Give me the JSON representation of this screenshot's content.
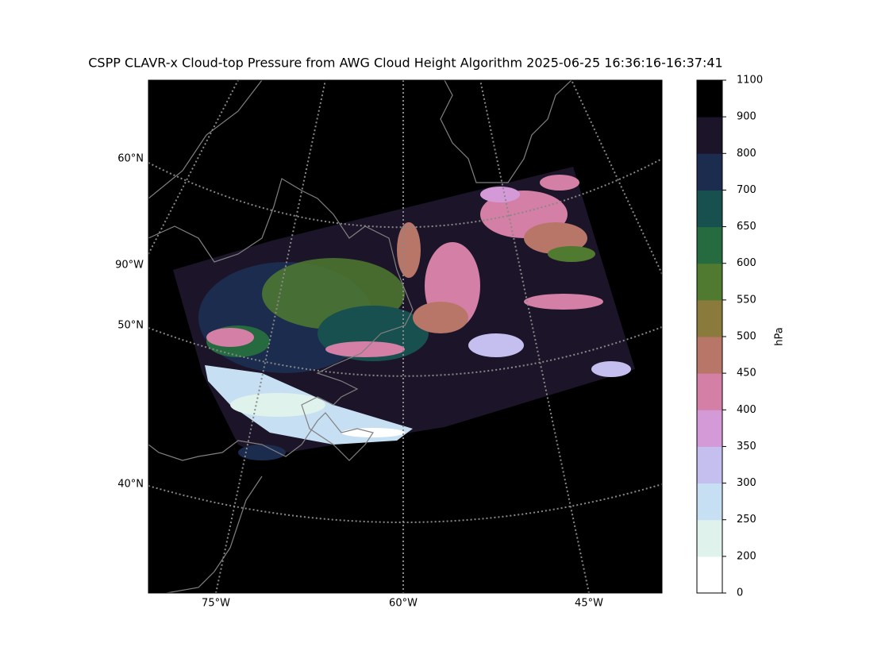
{
  "title": "CSPP CLAVR-x Cloud-top Pressure from AWG Cloud Height Algorithm 2025-06-25 16:36:16-16:37:41",
  "map": {
    "lat_labels": [
      "60°N",
      "50°N",
      "40°N"
    ],
    "left_lon_labels": [
      "90°W"
    ],
    "bottom_lon_labels": [
      "75°W",
      "60°W",
      "45°W"
    ]
  },
  "colorbar": {
    "label": "hPa",
    "boundaries": [
      0,
      200,
      250,
      300,
      350,
      400,
      450,
      500,
      550,
      600,
      650,
      700,
      800,
      900,
      1100
    ],
    "colors": [
      "#ffffff",
      "#dff2ec",
      "#c6dff2",
      "#c5bff0",
      "#d49ad8",
      "#d47fa5",
      "#b87668",
      "#8a7a3c",
      "#4f7a30",
      "#266b40",
      "#17504f",
      "#1c2c4e",
      "#1c1428",
      "#000000"
    ]
  }
}
